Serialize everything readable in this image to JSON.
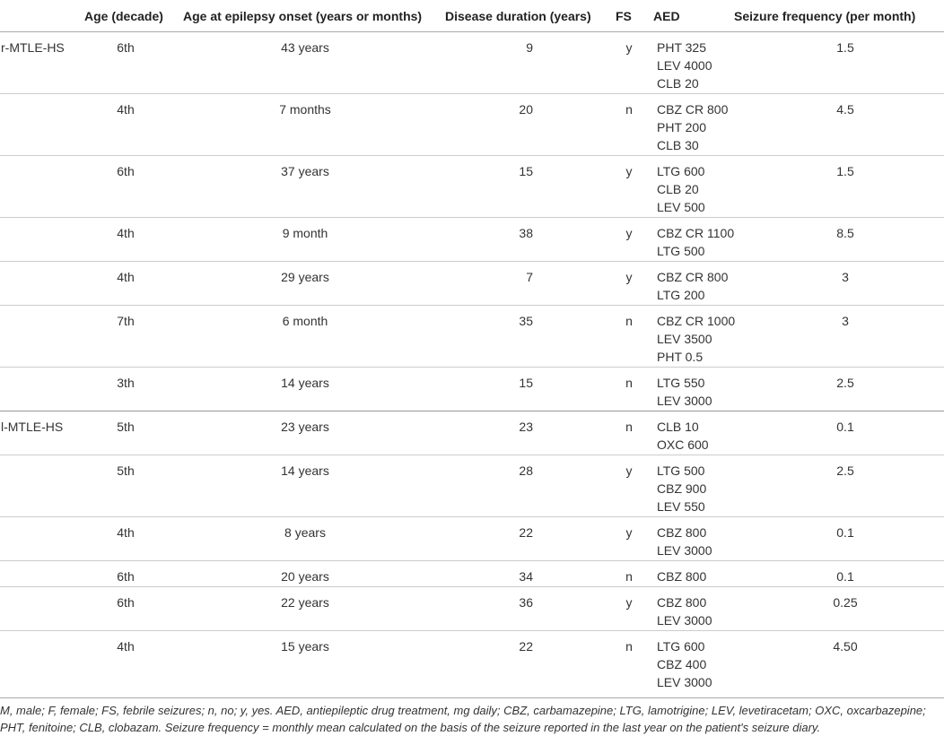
{
  "table": {
    "columns": [
      "Age (decade)",
      "Age at epilepsy onset (years or months)",
      "Disease duration (years)",
      "FS",
      "AED",
      "Seizure frequency (per month)"
    ],
    "rows": [
      {
        "group": "r-MTLE-HS",
        "decade": "6th",
        "onset": "43 years",
        "duration": 9,
        "fs": "y",
        "aed": [
          "PHT 325",
          "LEV 4000",
          "CLB 20"
        ],
        "frequency": "1.5"
      },
      {
        "decade": "4th",
        "onset": "7 months",
        "duration": 20,
        "fs": "n",
        "aed": [
          "CBZ CR 800",
          "PHT 200",
          "CLB 30"
        ],
        "frequency": "4.5"
      },
      {
        "decade": "6th",
        "onset": "37 years",
        "duration": 15,
        "fs": "y",
        "aed": [
          "LTG 600",
          "CLB 20",
          "LEV 500"
        ],
        "frequency": "1.5"
      },
      {
        "decade": "4th",
        "onset": "9 month",
        "duration": 38,
        "fs": "y",
        "aed": [
          "CBZ CR 1100",
          "LTG 500"
        ],
        "frequency": "8.5"
      },
      {
        "decade": "4th",
        "onset": "29 years",
        "duration": 7,
        "fs": "y",
        "aed": [
          "CBZ CR 800",
          "LTG 200"
        ],
        "frequency": "3"
      },
      {
        "decade": "7th",
        "onset": "6 month",
        "duration": 35,
        "fs": "n",
        "aed": [
          "CBZ CR 1000",
          "LEV 3500",
          "PHT 0.5"
        ],
        "frequency": "3"
      },
      {
        "decade": "3th",
        "onset": "14 years",
        "duration": 15,
        "fs": "n",
        "aed": [
          "LTG 550",
          "LEV 3000"
        ],
        "frequency": "2.5"
      },
      {
        "group": "l-MTLE-HS",
        "decade": "5th",
        "onset": "23 years",
        "duration": 23,
        "fs": "n",
        "aed": [
          "CLB 10",
          "OXC 600"
        ],
        "frequency": "0.1"
      },
      {
        "decade": "5th",
        "onset": "14 years",
        "duration": 28,
        "fs": "y",
        "aed": [
          "LTG 500",
          "CBZ 900",
          "LEV 550"
        ],
        "frequency": "2.5"
      },
      {
        "decade": "4th",
        "onset": "8 years",
        "duration": 22,
        "fs": "y",
        "aed": [
          "CBZ 800",
          "LEV 3000"
        ],
        "frequency": "0.1"
      },
      {
        "decade": "6th",
        "onset": "20 years",
        "duration": 34,
        "fs": "n",
        "aed": [
          "CBZ 800"
        ],
        "frequency": "0.1"
      },
      {
        "decade": "6th",
        "onset": "22 years",
        "duration": 36,
        "fs": "y",
        "aed": [
          "CBZ 800",
          "LEV 3000"
        ],
        "frequency": "0.25"
      },
      {
        "decade": "4th",
        "onset": "15 years",
        "duration": 22,
        "fs": "n",
        "aed": [
          "LTG 600",
          "CBZ 400",
          "LEV 3000"
        ],
        "frequency": "4.50"
      }
    ]
  },
  "footnote": "M, male; F, female; FS, febrile seizures; n, no; y, yes. AED, antiepileptic drug treatment, mg daily; CBZ, carbamazepine; LTG, lamotrigine; LEV, levetiracetam; OXC, oxcarbazepine; PHT, fenitoine; CLB, clobazam. Seizure frequency = monthly mean calculated on the basis of the seizure reported in the last year on the patient's seizure diary."
}
